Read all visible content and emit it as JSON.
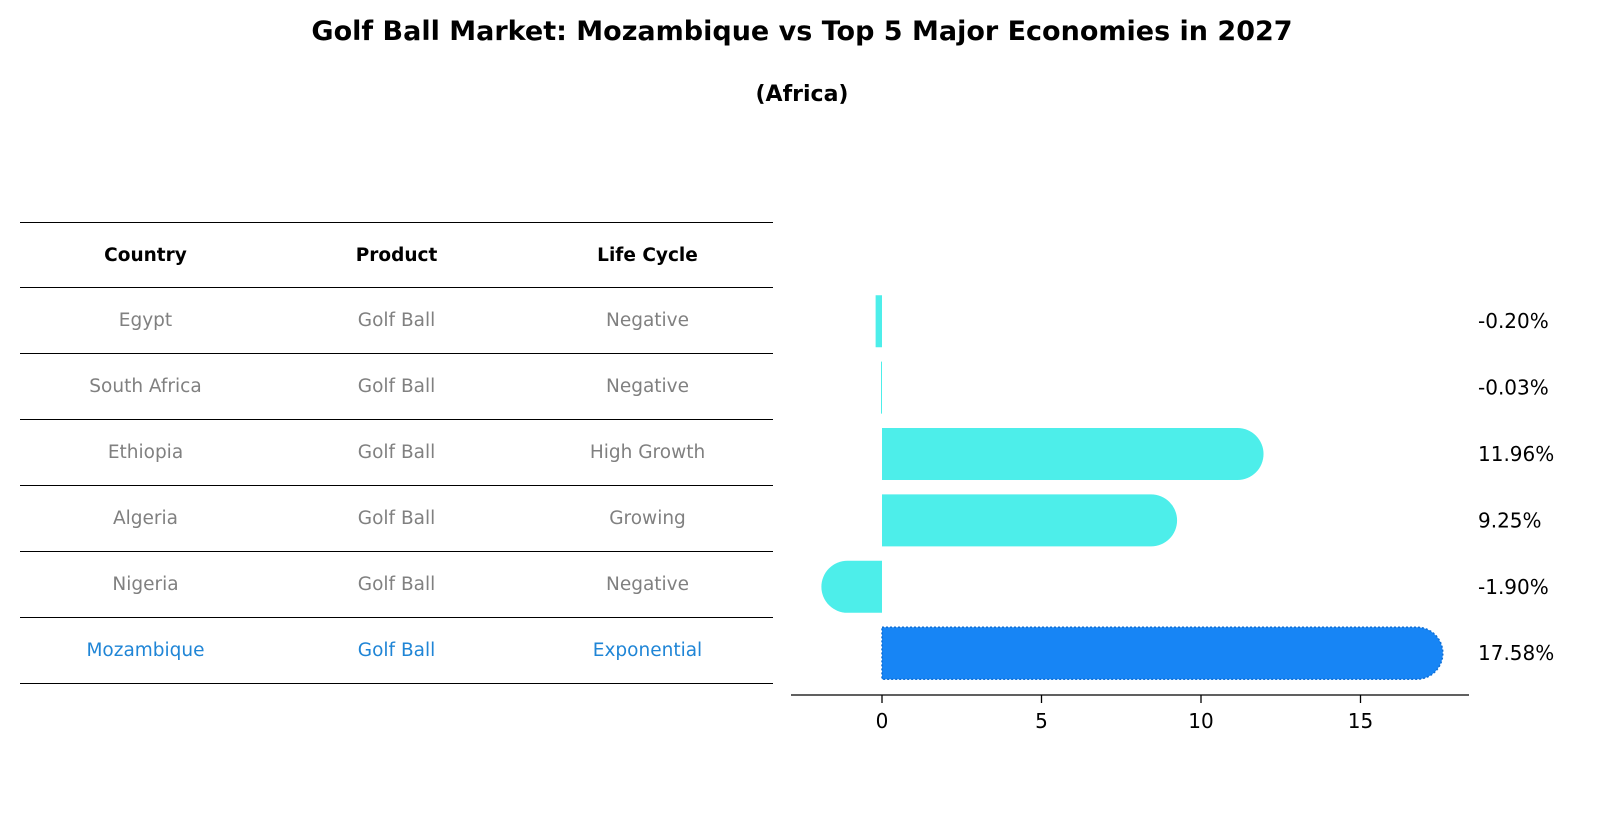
{
  "title": "Golf Ball Market: Mozambique vs Top 5 Major Economies in 2027",
  "subtitle": "(Africa)",
  "table": {
    "headers": [
      "Country",
      "Product",
      "Life Cycle"
    ],
    "rows": [
      {
        "country": "Egypt",
        "product": "Golf Ball",
        "life_cycle": "Negative"
      },
      {
        "country": "South Africa",
        "product": "Golf Ball",
        "life_cycle": "Negative"
      },
      {
        "country": "Ethiopia",
        "product": "Golf Ball",
        "life_cycle": "High Growth"
      },
      {
        "country": "Algeria",
        "product": "Golf Ball",
        "life_cycle": "Growing"
      },
      {
        "country": "Nigeria",
        "product": "Golf Ball",
        "life_cycle": "Negative"
      },
      {
        "country": "Mozambique",
        "product": "Golf Ball",
        "life_cycle": "Exponential"
      }
    ]
  },
  "colors": {
    "bar": "#4deeea",
    "highlight_bar": "#1785f5",
    "highlight_text": "#1f85d6",
    "muted_text": "#808080"
  },
  "chart_data": {
    "type": "bar",
    "orientation": "horizontal",
    "categories": [
      "Egypt",
      "South Africa",
      "Ethiopia",
      "Algeria",
      "Nigeria",
      "Mozambique"
    ],
    "values": [
      -0.2,
      -0.03,
      11.96,
      9.25,
      -1.9,
      17.58
    ],
    "value_labels": [
      "-0.20%",
      "-0.03%",
      "11.96%",
      "9.25%",
      "-1.90%",
      "17.58%"
    ],
    "highlight": "Mozambique",
    "xticks": [
      0,
      5,
      10,
      15
    ],
    "xlim": [
      -2.9,
      18.6
    ],
    "grid": false,
    "xlabel": "",
    "ylabel": ""
  }
}
